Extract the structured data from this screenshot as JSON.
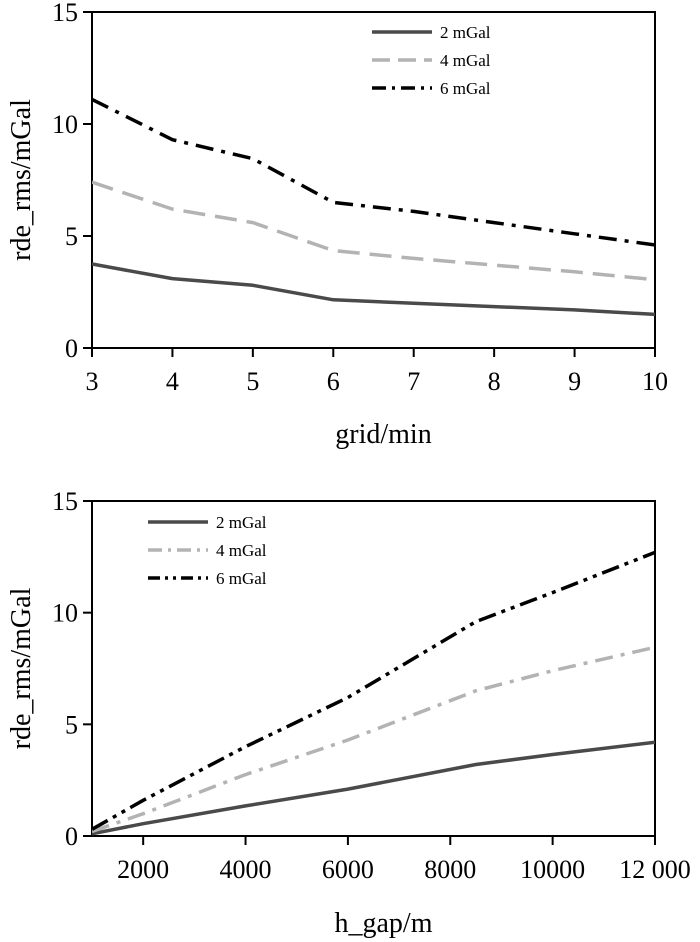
{
  "chart_data": [
    {
      "type": "line",
      "xlabel": "grid/min",
      "ylabel": "rde_rms/mGal",
      "xlim": [
        3,
        10
      ],
      "ylim": [
        0,
        15
      ],
      "xticks": [
        3,
        4,
        5,
        6,
        7,
        8,
        9,
        10
      ],
      "xtick_labels": [
        "3",
        "4",
        "5",
        "6",
        "7",
        "8",
        "9",
        "10"
      ],
      "yticks": [
        0,
        5,
        10,
        15
      ],
      "ytick_labels": [
        "0",
        "5",
        "10",
        "15"
      ],
      "grid": false,
      "legend_position": "top-right",
      "series": [
        {
          "name": "2 mGal",
          "color": "#4a4a4a",
          "dash": "solid",
          "x": [
            3,
            4,
            5,
            6,
            7,
            8,
            9,
            10
          ],
          "y": [
            3.75,
            3.1,
            2.8,
            2.15,
            2.0,
            1.85,
            1.7,
            1.5
          ]
        },
        {
          "name": "4 mGal",
          "color": "#b3b3b3",
          "dash": "dash",
          "x": [
            3,
            4,
            5,
            6,
            7,
            8,
            9,
            10
          ],
          "y": [
            7.4,
            6.2,
            5.6,
            4.35,
            4.0,
            3.7,
            3.4,
            3.05
          ]
        },
        {
          "name": "6 mGal",
          "color": "#000000",
          "dash": "dashdot",
          "x": [
            3,
            4,
            5,
            6,
            7,
            8,
            9,
            10
          ],
          "y": [
            11.1,
            9.3,
            8.45,
            6.5,
            6.1,
            5.6,
            5.1,
            4.6
          ]
        }
      ]
    },
    {
      "type": "line",
      "xlabel": "h_gap/m",
      "ylabel": "rde_rms/mGal",
      "xlim": [
        1000,
        12000
      ],
      "ylim": [
        0,
        15
      ],
      "xticks": [
        2000,
        4000,
        6000,
        8000,
        10000,
        12000
      ],
      "xtick_labels": [
        "2000",
        "4000",
        "6000",
        "8000",
        "10000",
        "12 000"
      ],
      "yticks": [
        0,
        5,
        10,
        15
      ],
      "ytick_labels": [
        "0",
        "5",
        "10",
        "15"
      ],
      "grid": false,
      "legend_position": "top-left",
      "series": [
        {
          "name": "2 mGal",
          "color": "#4a4a4a",
          "dash": "solid",
          "x": [
            1000,
            2000,
            4000,
            6000,
            8500,
            10000,
            12000
          ],
          "y": [
            0.1,
            0.55,
            1.35,
            2.1,
            3.2,
            3.65,
            4.2
          ]
        },
        {
          "name": "4 mGal",
          "color": "#b3b3b3",
          "dash": "dashdot",
          "x": [
            1000,
            2000,
            4000,
            6000,
            8500,
            10000,
            12000
          ],
          "y": [
            0.2,
            1.0,
            2.75,
            4.3,
            6.5,
            7.4,
            8.45
          ]
        },
        {
          "name": "6 mGal",
          "color": "#000000",
          "dash": "dashdotdot",
          "x": [
            1000,
            2000,
            4000,
            6000,
            8500,
            10000,
            12000
          ],
          "y": [
            0.3,
            1.6,
            4.0,
            6.2,
            9.6,
            10.9,
            12.7
          ]
        }
      ]
    }
  ]
}
